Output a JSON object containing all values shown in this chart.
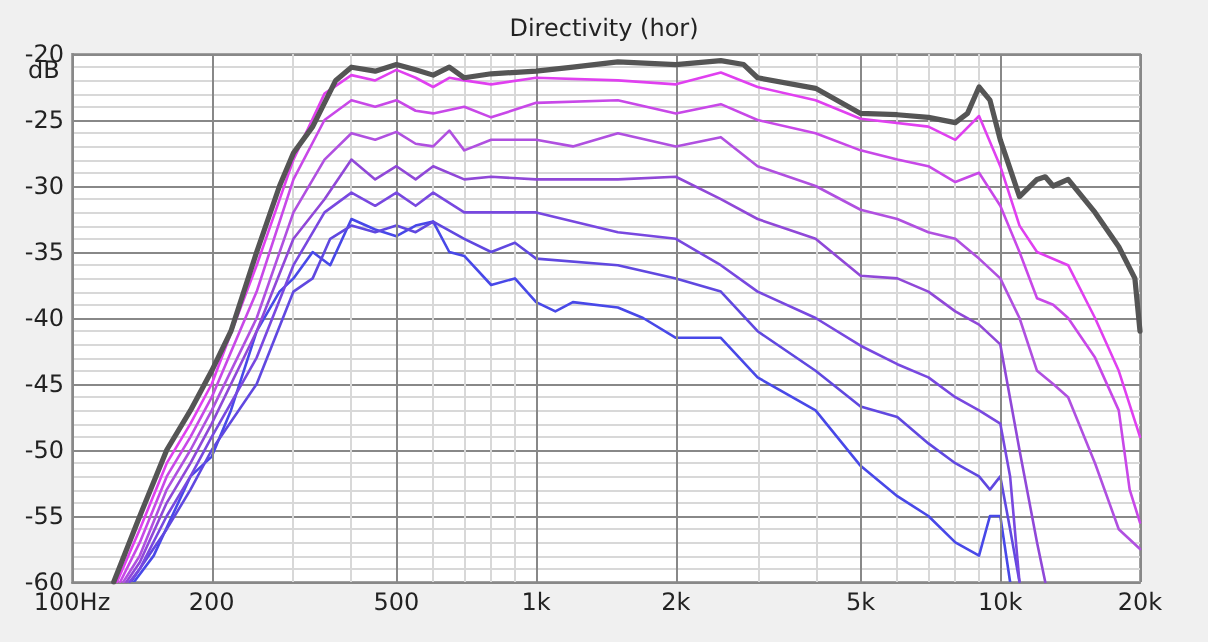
{
  "chart_data": {
    "type": "line",
    "title": "Directivity (hor)",
    "ylabel": "dB",
    "xlim": [
      100,
      20000
    ],
    "ylim": [
      -60,
      -20
    ],
    "log": "x",
    "xticks": [
      {
        "value": 100,
        "label": "100Hz"
      },
      200,
      500,
      {
        "value": 1000,
        "label": "1k"
      },
      {
        "value": 2000,
        "label": "2k"
      },
      {
        "value": 5000,
        "label": "5k"
      },
      {
        "value": 10000,
        "label": "10k"
      },
      {
        "value": 20000,
        "label": "20k"
      }
    ],
    "yticks": [
      -60,
      -55,
      -50,
      -45,
      -40,
      -35,
      -30,
      -25,
      -20
    ],
    "grid": true,
    "marker": "none",
    "line_style": "solid",
    "series": [
      {
        "color": "#555555",
        "x": [
          123,
          140,
          160,
          180,
          200,
          220,
          250,
          280,
          300,
          330,
          370,
          400,
          450,
          500,
          550,
          600,
          650,
          700,
          800,
          1000,
          1200,
          1500,
          2000,
          2500,
          2800,
          3000,
          4000,
          5000,
          6000,
          7000,
          8000,
          8500,
          9000,
          9500,
          10000,
          11000,
          12000,
          12500,
          13000,
          14000,
          16000,
          18000,
          19500,
          20000
        ],
        "values": [
          -60,
          -55,
          -50,
          -47,
          -44,
          -41,
          -35,
          -30,
          -27.5,
          -25.5,
          -22,
          -21,
          -21.3,
          -20.8,
          -21.2,
          -21.6,
          -21,
          -21.8,
          -21.5,
          -21.3,
          -21,
          -20.6,
          -20.8,
          -20.5,
          -20.8,
          -21.8,
          -22.6,
          -24.5,
          -24.6,
          -24.8,
          -25.2,
          -24.5,
          -22.5,
          -23.5,
          -26.5,
          -30.8,
          -29.5,
          -29.3,
          -30,
          -29.5,
          -32,
          -34.6,
          -37,
          -41
        ]
      },
      {
        "color": "#e040f0",
        "x": [
          125,
          140,
          160,
          180,
          200,
          250,
          300,
          350,
          400,
          450,
          500,
          550,
          600,
          650,
          700,
          800,
          1000,
          1500,
          2000,
          2500,
          3000,
          4000,
          5000,
          7000,
          8000,
          9000,
          10000,
          11000,
          12000,
          14000,
          16000,
          18000,
          20000
        ],
        "values": [
          -60,
          -56,
          -51,
          -48,
          -45,
          -36,
          -28,
          -23,
          -21.6,
          -22,
          -21.2,
          -21.8,
          -22.5,
          -21.8,
          -22,
          -22.3,
          -21.8,
          -22,
          -22.3,
          -21.4,
          -22.5,
          -23.5,
          -24.9,
          -25.5,
          -26.5,
          -24.7,
          -28.5,
          -33,
          -35,
          -36,
          -40,
          -44,
          -49
        ]
      },
      {
        "color": "#c848e8",
        "x": [
          127,
          140,
          160,
          180,
          200,
          250,
          300,
          350,
          400,
          450,
          500,
          550,
          600,
          700,
          800,
          1000,
          1500,
          2000,
          2500,
          3000,
          4000,
          5000,
          6000,
          7000,
          8000,
          9000,
          10000,
          11000,
          12000,
          13000,
          14000,
          16000,
          18000,
          19000,
          20000
        ],
        "values": [
          -60,
          -57,
          -52,
          -49,
          -46,
          -38,
          -29.5,
          -25,
          -23.5,
          -24,
          -23.5,
          -24.3,
          -24.5,
          -24,
          -24.8,
          -23.7,
          -23.5,
          -24.5,
          -23.8,
          -25,
          -26,
          -27.3,
          -28,
          -28.5,
          -29.7,
          -29,
          -31.5,
          -35,
          -38.5,
          -39,
          -40,
          -43,
          -47,
          -53,
          -55.5
        ]
      },
      {
        "color": "#b050e0",
        "x": [
          129,
          140,
          160,
          180,
          200,
          250,
          300,
          350,
          400,
          450,
          500,
          550,
          600,
          650,
          700,
          800,
          1000,
          1200,
          1500,
          2000,
          2500,
          3000,
          4000,
          5000,
          6000,
          7000,
          8000,
          9000,
          10000,
          11000,
          12000,
          13000,
          14000,
          16000,
          18000,
          20000
        ],
        "values": [
          -60,
          -58,
          -53,
          -50,
          -47,
          -40,
          -32,
          -28,
          -26,
          -26.5,
          -25.9,
          -26.8,
          -27,
          -25.8,
          -27.3,
          -26.5,
          -26.5,
          -27,
          -26,
          -27,
          -26.3,
          -28.5,
          -30,
          -31.8,
          -32.5,
          -33.5,
          -34,
          -35.5,
          -37,
          -40,
          -44,
          -45,
          -46,
          -51,
          -56,
          -57.5
        ]
      },
      {
        "color": "#9048d8",
        "x": [
          131,
          140,
          160,
          180,
          200,
          250,
          300,
          350,
          400,
          450,
          500,
          550,
          600,
          700,
          800,
          1000,
          1500,
          2000,
          2500,
          3000,
          4000,
          5000,
          6000,
          7000,
          8000,
          9000,
          10000,
          11000,
          12000,
          12500
        ],
        "values": [
          -60,
          -58.5,
          -54,
          -51,
          -48,
          -41,
          -34,
          -31,
          -28,
          -29.5,
          -28.5,
          -29.5,
          -28.5,
          -29.5,
          -29.3,
          -29.5,
          -29.5,
          -29.3,
          -31,
          -32.5,
          -34,
          -36.8,
          -37,
          -38,
          -39.5,
          -40.5,
          -42,
          -50,
          -57,
          -60
        ]
      },
      {
        "color": "#7848e0",
        "x": [
          133,
          140,
          160,
          180,
          200,
          250,
          300,
          350,
          400,
          450,
          500,
          550,
          600,
          700,
          800,
          1000,
          1500,
          2000,
          2500,
          3000,
          4000,
          5000,
          6000,
          7000,
          8000,
          9000,
          10000,
          10500,
          11000
        ],
        "values": [
          -60,
          -59,
          -55,
          -52,
          -49,
          -43,
          -36,
          -32,
          -30.5,
          -31.5,
          -30.5,
          -31.5,
          -30.5,
          -32,
          -32,
          -32,
          -33.5,
          -34,
          -36,
          -38,
          -40,
          -42.1,
          -43.5,
          -44.5,
          -46,
          -47,
          -48,
          -52,
          -60
        ]
      },
      {
        "color": "#6048e0",
        "x": [
          134,
          140,
          160,
          180,
          200,
          250,
          300,
          330,
          360,
          400,
          450,
          500,
          550,
          600,
          700,
          800,
          900,
          1000,
          1500,
          2000,
          2500,
          3000,
          4000,
          5000,
          6000,
          7000,
          8000,
          9000,
          9500,
          10000,
          10500,
          11000
        ],
        "values": [
          -60,
          -59,
          -56,
          -53,
          -50,
          -45,
          -38,
          -37,
          -34,
          -33,
          -33.5,
          -33,
          -33.5,
          -32.7,
          -34,
          -35,
          -34.3,
          -35.5,
          -36,
          -37,
          -38,
          -41,
          -44,
          -46.7,
          -47.5,
          -49.5,
          -51,
          -52,
          -53,
          -52,
          -56,
          -60
        ]
      },
      {
        "color": "#4848e8",
        "x": [
          136,
          150,
          180,
          200,
          220,
          250,
          280,
          300,
          330,
          360,
          400,
          450,
          500,
          550,
          600,
          650,
          700,
          800,
          900,
          1000,
          1100,
          1200,
          1500,
          1700,
          2000,
          2500,
          3000,
          4000,
          5000,
          6000,
          7000,
          8000,
          9000,
          9500,
          10000,
          10500
        ],
        "values": [
          -60,
          -58,
          -52,
          -50.5,
          -47,
          -41,
          -38,
          -37,
          -35,
          -36,
          -32.5,
          -33.3,
          -33.8,
          -33,
          -32.7,
          -35,
          -35.3,
          -37.5,
          -37,
          -38.8,
          -39.5,
          -38.8,
          -39.2,
          -40,
          -41.5,
          -41.5,
          -44.5,
          -47,
          -51.2,
          -53.5,
          -55,
          -57,
          -58,
          -55,
          -55,
          -60
        ]
      }
    ]
  }
}
